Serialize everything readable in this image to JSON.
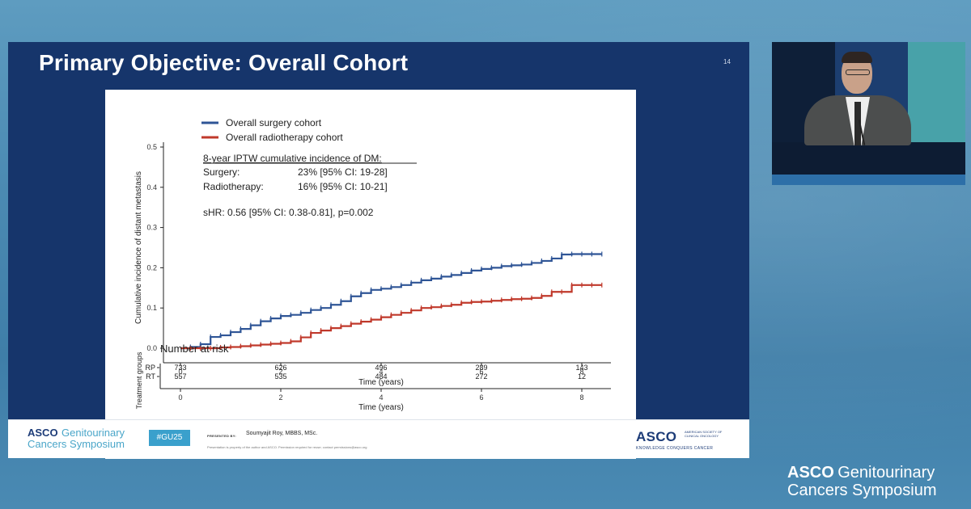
{
  "slide": {
    "title": "Primary Objective: Overall Cohort",
    "number": "14"
  },
  "chart_data": [
    {
      "type": "line",
      "title": "",
      "xlabel": "Time (years)",
      "ylabel": "Cumulative incidence of distant metastasis",
      "xlim": [
        0,
        8.4
      ],
      "ylim": [
        0,
        0.5
      ],
      "x_ticks": [
        "0",
        "2",
        "4",
        "6",
        "8"
      ],
      "y_ticks": [
        "0.0",
        "0.1",
        "0.2",
        "0.3",
        "0.4",
        "0.5"
      ],
      "grid": false,
      "legend_position": "top-left",
      "series": [
        {
          "name": "Overall surgery cohort",
          "color": "#2f5596",
          "x": [
            0,
            0.2,
            0.4,
            0.6,
            0.8,
            1.0,
            1.2,
            1.4,
            1.6,
            1.8,
            2.0,
            2.2,
            2.4,
            2.6,
            2.8,
            3.0,
            3.2,
            3.4,
            3.6,
            3.8,
            4.0,
            4.2,
            4.4,
            4.6,
            4.8,
            5.0,
            5.2,
            5.4,
            5.6,
            5.8,
            6.0,
            6.2,
            6.4,
            6.6,
            6.8,
            7.0,
            7.2,
            7.4,
            7.6,
            7.8,
            8.0,
            8.2,
            8.4
          ],
          "y": [
            0.0,
            0.003,
            0.01,
            0.028,
            0.032,
            0.04,
            0.048,
            0.057,
            0.067,
            0.074,
            0.08,
            0.083,
            0.088,
            0.095,
            0.1,
            0.108,
            0.117,
            0.129,
            0.137,
            0.145,
            0.148,
            0.152,
            0.157,
            0.163,
            0.169,
            0.173,
            0.178,
            0.182,
            0.187,
            0.193,
            0.197,
            0.2,
            0.204,
            0.206,
            0.208,
            0.212,
            0.217,
            0.223,
            0.233,
            0.234,
            0.234,
            0.234,
            0.234
          ]
        },
        {
          "name": "Overall radiotherapy cohort",
          "color": "#c0392b",
          "x": [
            0,
            0.2,
            0.4,
            0.6,
            0.8,
            1.0,
            1.2,
            1.4,
            1.6,
            1.8,
            2.0,
            2.2,
            2.4,
            2.6,
            2.8,
            3.0,
            3.2,
            3.4,
            3.6,
            3.8,
            4.0,
            4.2,
            4.4,
            4.6,
            4.8,
            5.0,
            5.2,
            5.4,
            5.6,
            5.8,
            6.0,
            6.2,
            6.4,
            6.6,
            6.8,
            7.0,
            7.2,
            7.4,
            7.6,
            7.8,
            8.0,
            8.2,
            8.4
          ],
          "y": [
            0.0,
            0.0,
            0.0,
            0.0,
            0.002,
            0.003,
            0.005,
            0.007,
            0.009,
            0.011,
            0.013,
            0.017,
            0.027,
            0.038,
            0.044,
            0.05,
            0.055,
            0.061,
            0.066,
            0.071,
            0.077,
            0.083,
            0.088,
            0.094,
            0.1,
            0.102,
            0.105,
            0.108,
            0.113,
            0.115,
            0.116,
            0.118,
            0.12,
            0.122,
            0.123,
            0.125,
            0.13,
            0.14,
            0.14,
            0.157,
            0.157,
            0.157,
            0.157
          ]
        }
      ],
      "annotations": {
        "heading": "8-year IPTW cumulative incidence of DM:",
        "rows": [
          {
            "label": "Surgery:",
            "value": "23% [95% CI: 19-28]"
          },
          {
            "label": "Radiotherapy:",
            "value": "16% [95% CI: 10-21]"
          }
        ],
        "shr": "sHR: 0.56 [95% CI: 0.38-0.81], p=0.002"
      }
    },
    {
      "type": "table",
      "title": "Number at risk",
      "ylabel": "Treatment groups",
      "xlabel": "Time (years)",
      "x_ticks": [
        "0",
        "2",
        "4",
        "6",
        "8"
      ],
      "rows": [
        {
          "label": "RP",
          "values": [
            "733",
            "626",
            "496",
            "289",
            "143"
          ]
        },
        {
          "label": "RT",
          "values": [
            "557",
            "535",
            "484",
            "272",
            "12"
          ]
        }
      ]
    }
  ],
  "footer": {
    "logo_asco": "ASCO",
    "logo_gu": "Genitourinary",
    "logo_line2": "Cancers Symposium",
    "hashtag": "#GU25",
    "presented_by": "PRESENTED BY:",
    "presenter": "Soumyajit Roy, MBBS, MSc.",
    "disclaimer": "Presentation is property of the author and ASCO. Permission required for reuse; contact permissions@asco.org",
    "asco_word": "ASCO",
    "asco_society": "AMERICAN SOCIETY OF CLINICAL ONCOLOGY",
    "asco_tagline": "KNOWLEDGE CONQUERS CANCER"
  },
  "branding": {
    "asco": "ASCO",
    "gu": "Genitourinary",
    "line2": "Cancers Symposium"
  }
}
